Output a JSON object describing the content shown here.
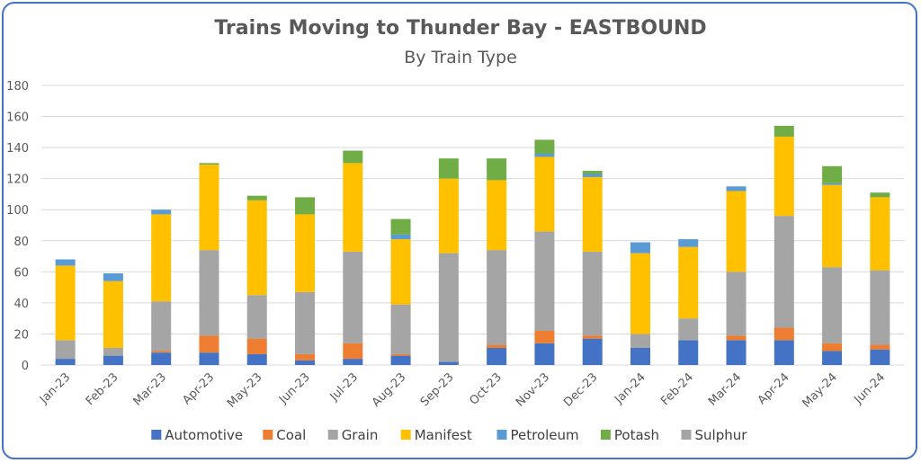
{
  "chart_data": {
    "type": "bar",
    "stacked": true,
    "title": "Trains Moving to Thunder Bay - EASTBOUND",
    "subtitle": "By Train Type",
    "xlabel": "",
    "ylabel": "",
    "ylim": [
      0,
      180
    ],
    "yticks": [
      0,
      20,
      40,
      60,
      80,
      100,
      120,
      140,
      160,
      180
    ],
    "grid": true,
    "legend_position": "bottom",
    "categories": [
      "Jan-23",
      "Feb-23",
      "Mar-23",
      "Apr-23",
      "May-23",
      "Jun-23",
      "Jul-23",
      "Aug-23",
      "Sep-23",
      "Oct-23",
      "Nov-23",
      "Dec-23",
      "Jan-24",
      "Feb-24",
      "Mar-24",
      "Apr-24",
      "May-24",
      "Jun-24"
    ],
    "series": [
      {
        "name": "Automotive",
        "color": "#4472c4",
        "values": [
          4,
          6,
          8,
          8,
          7,
          3,
          4,
          6,
          2,
          11,
          14,
          17,
          11,
          16,
          16,
          16,
          9,
          10
        ]
      },
      {
        "name": "Coal",
        "color": "#ed7d31",
        "values": [
          0,
          0,
          1,
          11,
          10,
          4,
          10,
          1,
          0,
          2,
          8,
          2,
          0,
          0,
          3,
          8,
          5,
          3
        ]
      },
      {
        "name": "Grain",
        "color": "#a5a5a5",
        "values": [
          12,
          5,
          32,
          55,
          28,
          40,
          59,
          32,
          70,
          61,
          64,
          54,
          9,
          14,
          41,
          72,
          49,
          48
        ]
      },
      {
        "name": "Manifest",
        "color": "#ffc000",
        "values": [
          48,
          43,
          56,
          55,
          61,
          50,
          57,
          42,
          48,
          45,
          48,
          48,
          52,
          46,
          52,
          51,
          53,
          47
        ]
      },
      {
        "name": "Petroleum",
        "color": "#5b9bd5",
        "values": [
          4,
          5,
          3,
          0,
          0,
          0,
          0,
          3,
          0,
          0,
          2,
          2,
          7,
          5,
          3,
          0,
          1,
          0
        ]
      },
      {
        "name": "Potash",
        "color": "#70ad47",
        "values": [
          0,
          0,
          0,
          1,
          3,
          11,
          8,
          10,
          13,
          14,
          9,
          2,
          0,
          0,
          0,
          7,
          11,
          3
        ]
      },
      {
        "name": "Sulphur",
        "color": "#a5a5a5",
        "values": [
          0,
          0,
          0,
          0,
          0,
          0,
          0,
          0,
          0,
          0,
          0,
          0,
          0,
          0,
          0,
          0,
          0,
          0
        ]
      }
    ]
  }
}
